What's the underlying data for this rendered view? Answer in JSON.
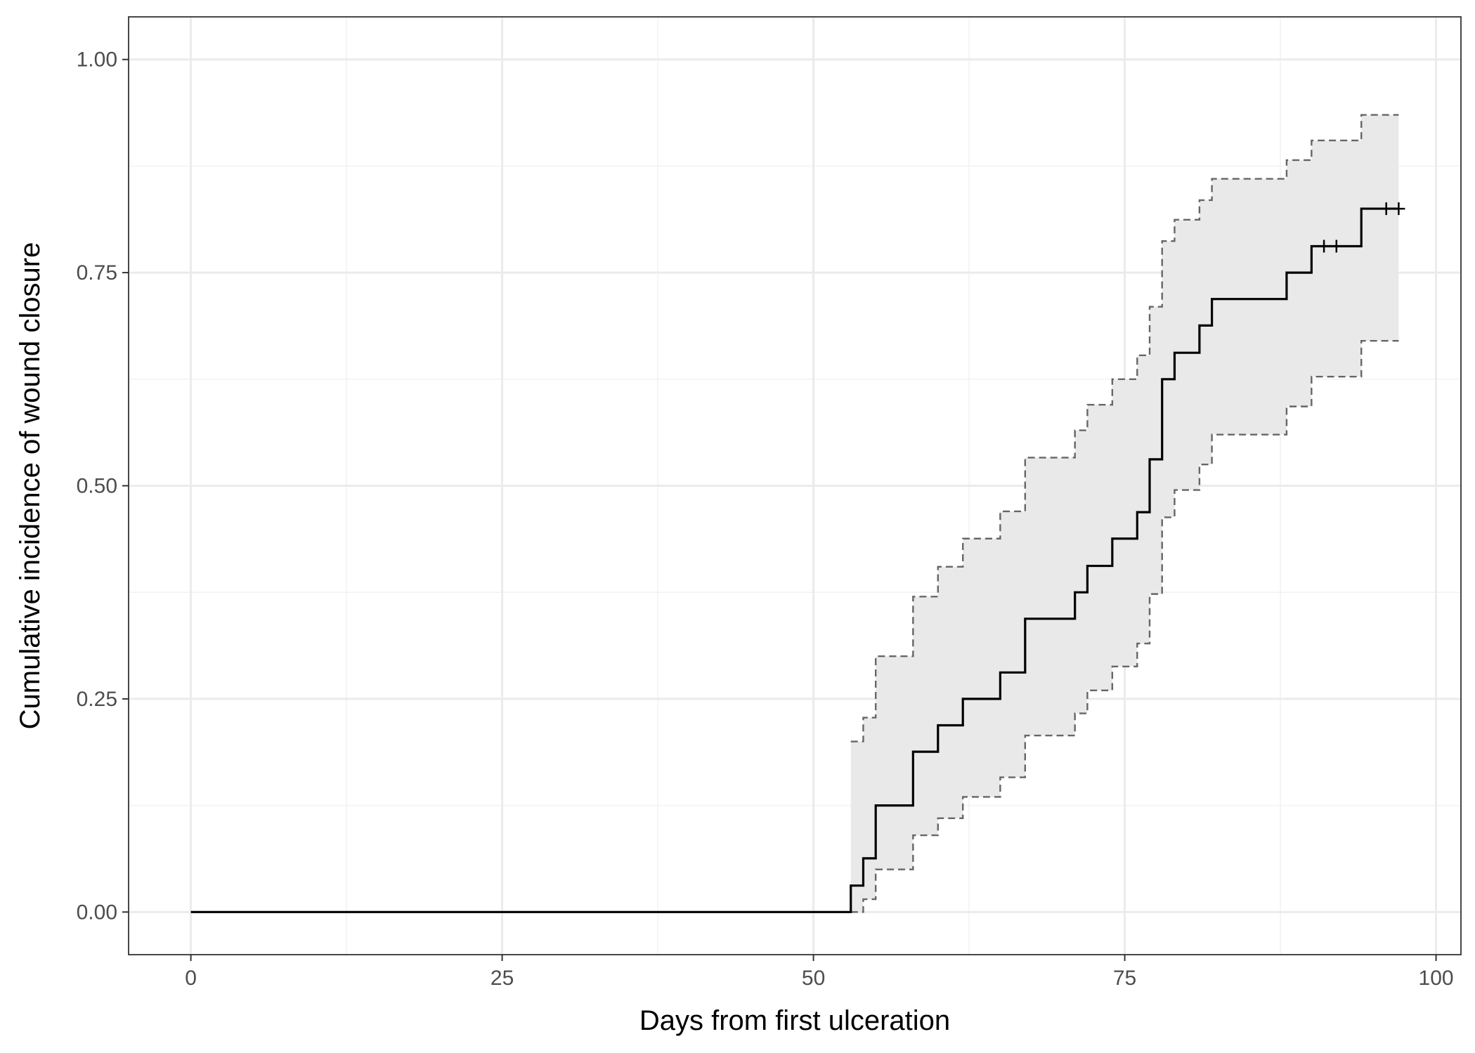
{
  "chart_data": {
    "type": "line",
    "subtype": "step",
    "title": "",
    "xlabel": "Days from first ulceration",
    "ylabel": "Cumulative incidence of wound closure",
    "xlim": [
      -5,
      102
    ],
    "ylim": [
      -0.05,
      1.05
    ],
    "x_ticks": [
      0,
      25,
      50,
      75,
      100
    ],
    "x_tick_labels": [
      "0",
      "25",
      "50",
      "75",
      "100"
    ],
    "y_ticks": [
      0,
      0.25,
      0.5,
      0.75,
      1.0
    ],
    "y_tick_labels": [
      "0.00",
      "0.25",
      "0.50",
      "0.75",
      "1.00"
    ],
    "grid": true,
    "legend": "none",
    "series": [
      {
        "role": "estimate",
        "line_style": "solid",
        "color": "#000000",
        "x": [
          0,
          53,
          54,
          55,
          58,
          60,
          62,
          65,
          67,
          71,
          72,
          74,
          76,
          77,
          78,
          79,
          81,
          82,
          88,
          90,
          94,
          97
        ],
        "y": [
          0,
          0.031,
          0.063,
          0.125,
          0.188,
          0.219,
          0.25,
          0.281,
          0.344,
          0.375,
          0.406,
          0.438,
          0.469,
          0.531,
          0.625,
          0.656,
          0.688,
          0.719,
          0.75,
          0.781,
          0.825,
          0.825
        ]
      },
      {
        "role": "upper_ci",
        "line_style": "dashed",
        "color": "#666666",
        "x": [
          53,
          54,
          55,
          58,
          60,
          62,
          65,
          67,
          71,
          72,
          74,
          76,
          77,
          78,
          79,
          81,
          82,
          88,
          90,
          94,
          97
        ],
        "y": [
          0.2,
          0.228,
          0.3,
          0.37,
          0.405,
          0.438,
          0.47,
          0.533,
          0.565,
          0.595,
          0.625,
          0.653,
          0.71,
          0.787,
          0.812,
          0.835,
          0.86,
          0.882,
          0.905,
          0.935,
          0.935
        ]
      },
      {
        "role": "lower_ci",
        "line_style": "dashed",
        "color": "#666666",
        "x": [
          53,
          54,
          55,
          58,
          60,
          62,
          65,
          67,
          71,
          72,
          74,
          76,
          77,
          78,
          79,
          81,
          82,
          88,
          90,
          94,
          97
        ],
        "y": [
          0.0,
          0.015,
          0.05,
          0.09,
          0.11,
          0.135,
          0.158,
          0.207,
          0.233,
          0.26,
          0.288,
          0.315,
          0.373,
          0.463,
          0.495,
          0.525,
          0.56,
          0.593,
          0.628,
          0.67,
          0.67
        ]
      }
    ],
    "censor_marks": {
      "x": [
        91,
        92,
        96,
        97
      ],
      "y": [
        0.781,
        0.781,
        0.825,
        0.825
      ]
    },
    "band_color": "#e9e9e9"
  }
}
